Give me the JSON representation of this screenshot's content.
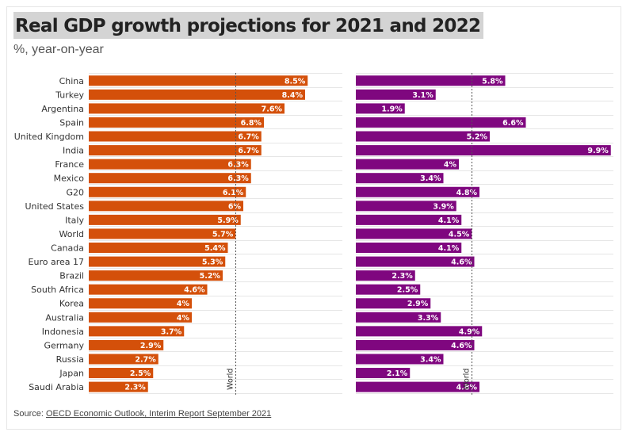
{
  "title": "Real GDP growth projections for 2021 and 2022",
  "subtitle": "%, year-on-year",
  "source": {
    "prefix": "Source: ",
    "link_text": "OECD Economic Outlook, Interim Report September 2021"
  },
  "colors": {
    "series_2021": "#d4500a",
    "series_2022": "#7f077f",
    "grid": "#e6e6e6",
    "reference_line": "#555555"
  },
  "chart_data": {
    "type": "bar",
    "orientation": "horizontal",
    "categories": [
      "China",
      "Turkey",
      "Argentina",
      "Spain",
      "United Kingdom",
      "India",
      "France",
      "Mexico",
      "G20",
      "United States",
      "Italy",
      "World",
      "Canada",
      "Euro area 17",
      "Brazil",
      "South Africa",
      "Korea",
      "Australia",
      "Indonesia",
      "Germany",
      "Russia",
      "Japan",
      "Saudi Arabia"
    ],
    "series": [
      {
        "values": [
          8.5,
          8.4,
          7.6,
          6.8,
          6.7,
          6.7,
          6.3,
          6.3,
          6.1,
          6,
          5.9,
          5.7,
          5.4,
          5.3,
          5.2,
          4.6,
          4,
          4,
          3.7,
          2.9,
          2.7,
          2.5,
          2.3
        ],
        "labels": [
          "8.5%",
          "8.4%",
          "7.6%",
          "6.8%",
          "6.7%",
          "6.7%",
          "6.3%",
          "6.3%",
          "6.1%",
          "6%",
          "5.9%",
          "5.7%",
          "5.4%",
          "5.3%",
          "5.2%",
          "4.6%",
          "4%",
          "4%",
          "3.7%",
          "2.9%",
          "2.7%",
          "2.5%",
          "2.3%"
        ],
        "color": "#d4500a",
        "reference_line": {
          "label": "World",
          "value": 5.7
        }
      },
      {
        "values": [
          5.8,
          3.1,
          1.9,
          6.6,
          5.2,
          9.9,
          4,
          3.4,
          4.8,
          3.9,
          4.1,
          4.5,
          4.1,
          4.6,
          2.3,
          2.5,
          2.9,
          3.3,
          4.9,
          4.6,
          3.4,
          2.1,
          4.8
        ],
        "labels": [
          "5.8%",
          "3.1%",
          "1.9%",
          "6.6%",
          "5.2%",
          "9.9%",
          "4%",
          "3.4%",
          "4.8%",
          "3.9%",
          "4.1%",
          "4.5%",
          "4.1%",
          "4.6%",
          "2.3%",
          "2.5%",
          "2.9%",
          "3.3%",
          "4.9%",
          "4.6%",
          "3.4%",
          "2.1%",
          "4.8%"
        ],
        "color": "#7f077f",
        "reference_line": {
          "label": "World",
          "value": 4.5
        }
      }
    ],
    "grid": true,
    "xlim": [
      0,
      10
    ]
  }
}
